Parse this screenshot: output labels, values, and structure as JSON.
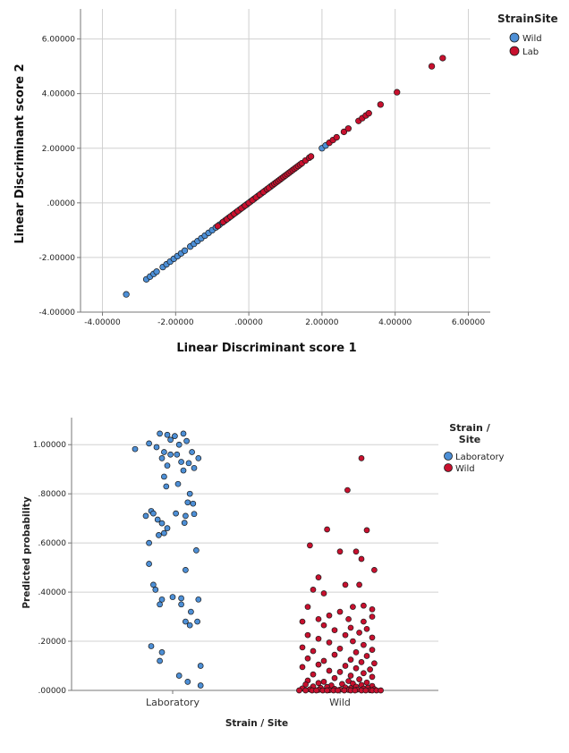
{
  "chart_data": [
    {
      "type": "scatter",
      "title": "",
      "xlabel": "Linear Discriminant score 1",
      "ylabel": "Linear Discriminant score 2",
      "xlim": [
        -4.6,
        6.6
      ],
      "ylim": [
        -4.0,
        7.1
      ],
      "xticks": [
        -4,
        -2,
        0,
        2,
        4,
        6
      ],
      "xtick_labels": [
        "-4.00000",
        "-2.00000",
        ".00000",
        "2.00000",
        "4.00000",
        "6.00000"
      ],
      "yticks": [
        -4,
        -2,
        0,
        2,
        4,
        6
      ],
      "ytick_labels": [
        "-4.00000",
        "-2.00000",
        ".00000",
        "2.00000",
        "4.00000",
        "6.00000"
      ],
      "grid": true,
      "legend": {
        "title": "StrainSite",
        "placement": "right"
      },
      "series": [
        {
          "name": "Wild",
          "color": "#4d8fd6",
          "points": [
            [
              -3.35,
              -3.35
            ],
            [
              -2.8,
              -2.8
            ],
            [
              -2.7,
              -2.7
            ],
            [
              -2.6,
              -2.6
            ],
            [
              -2.52,
              -2.52
            ],
            [
              -2.35,
              -2.35
            ],
            [
              -2.25,
              -2.25
            ],
            [
              -2.15,
              -2.15
            ],
            [
              -2.05,
              -2.05
            ],
            [
              -1.95,
              -1.95
            ],
            [
              -1.85,
              -1.85
            ],
            [
              -1.75,
              -1.75
            ],
            [
              -1.6,
              -1.6
            ],
            [
              -1.5,
              -1.5
            ],
            [
              -1.4,
              -1.4
            ],
            [
              -1.3,
              -1.3
            ],
            [
              -1.2,
              -1.2
            ],
            [
              -1.1,
              -1.1
            ],
            [
              -1.0,
              -1.0
            ],
            [
              -0.9,
              -0.9
            ],
            [
              -0.8,
              -0.8
            ],
            [
              -0.72,
              -0.72
            ],
            [
              -0.65,
              -0.65
            ],
            [
              -0.55,
              -0.55
            ],
            [
              -0.45,
              -0.45
            ],
            [
              -0.35,
              -0.35
            ],
            [
              -0.25,
              -0.25
            ],
            [
              -0.15,
              -0.15
            ],
            [
              -0.05,
              -0.05
            ],
            [
              0.05,
              0.05
            ],
            [
              0.15,
              0.15
            ],
            [
              0.25,
              0.25
            ],
            [
              0.35,
              0.35
            ],
            [
              0.45,
              0.45
            ],
            [
              0.6,
              0.6
            ],
            [
              2.0,
              2.0
            ],
            [
              2.1,
              2.1
            ]
          ]
        },
        {
          "name": "Lab",
          "color": "#c8102e",
          "points": [
            [
              -0.85,
              -0.85
            ],
            [
              -0.7,
              -0.7
            ],
            [
              -0.6,
              -0.6
            ],
            [
              -0.5,
              -0.5
            ],
            [
              -0.4,
              -0.4
            ],
            [
              -0.3,
              -0.3
            ],
            [
              -0.2,
              -0.2
            ],
            [
              -0.1,
              -0.1
            ],
            [
              0.0,
              0.0
            ],
            [
              0.1,
              0.1
            ],
            [
              0.2,
              0.2
            ],
            [
              0.3,
              0.3
            ],
            [
              0.4,
              0.4
            ],
            [
              0.5,
              0.5
            ],
            [
              0.55,
              0.55
            ],
            [
              0.65,
              0.65
            ],
            [
              0.7,
              0.7
            ],
            [
              0.75,
              0.75
            ],
            [
              0.8,
              0.8
            ],
            [
              0.85,
              0.85
            ],
            [
              0.9,
              0.9
            ],
            [
              0.95,
              0.95
            ],
            [
              1.0,
              1.0
            ],
            [
              1.05,
              1.05
            ],
            [
              1.1,
              1.1
            ],
            [
              1.15,
              1.15
            ],
            [
              1.2,
              1.2
            ],
            [
              1.25,
              1.25
            ],
            [
              1.3,
              1.3
            ],
            [
              1.35,
              1.35
            ],
            [
              1.4,
              1.4
            ],
            [
              1.45,
              1.45
            ],
            [
              1.55,
              1.55
            ],
            [
              1.65,
              1.65
            ],
            [
              1.7,
              1.7
            ],
            [
              2.2,
              2.2
            ],
            [
              2.3,
              2.3
            ],
            [
              2.4,
              2.4
            ],
            [
              2.6,
              2.6
            ],
            [
              2.72,
              2.72
            ],
            [
              3.0,
              3.0
            ],
            [
              3.1,
              3.1
            ],
            [
              3.2,
              3.2
            ],
            [
              3.28,
              3.28
            ],
            [
              3.6,
              3.6
            ],
            [
              4.05,
              4.05
            ],
            [
              5.0,
              5.0
            ],
            [
              5.3,
              5.3
            ]
          ]
        }
      ]
    },
    {
      "type": "scatter",
      "title": "",
      "xlabel": "Strain / Site",
      "ylabel": "Predicted probability",
      "categories": [
        "Laboratory",
        "Wild"
      ],
      "ylim": [
        0,
        1.11
      ],
      "yticks": [
        0,
        0.2,
        0.4,
        0.6,
        0.8,
        1.0
      ],
      "ytick_labels": [
        ".00000",
        ".20000",
        ".40000",
        ".60000",
        ".80000",
        "1.00000"
      ],
      "grid": true,
      "legend": {
        "title": "Strain / Site",
        "placement": "right"
      },
      "series": [
        {
          "name": "Laboratory",
          "color": "#4d8fd6",
          "category": "Laboratory",
          "points": [
            [
              -0.35,
              0.982
            ],
            [
              -0.22,
              1.005
            ],
            [
              -0.15,
              0.99
            ],
            [
              -0.12,
              1.045
            ],
            [
              -0.08,
              0.97
            ],
            [
              -0.05,
              1.04
            ],
            [
              -0.02,
              1.02
            ],
            [
              0.02,
              1.035
            ],
            [
              0.06,
              1.0
            ],
            [
              0.1,
              1.045
            ],
            [
              0.13,
              1.015
            ],
            [
              0.18,
              0.97
            ],
            [
              0.24,
              0.945
            ],
            [
              -0.1,
              0.945
            ],
            [
              -0.02,
              0.96
            ],
            [
              0.04,
              0.96
            ],
            [
              0.08,
              0.93
            ],
            [
              0.15,
              0.925
            ],
            [
              -0.05,
              0.915
            ],
            [
              0.2,
              0.905
            ],
            [
              -0.08,
              0.87
            ],
            [
              0.1,
              0.895
            ],
            [
              -0.06,
              0.83
            ],
            [
              0.05,
              0.84
            ],
            [
              0.14,
              0.765
            ],
            [
              0.16,
              0.8
            ],
            [
              0.19,
              0.76
            ],
            [
              0.03,
              0.72
            ],
            [
              0.2,
              0.718
            ],
            [
              -0.2,
              0.73
            ],
            [
              -0.25,
              0.71
            ],
            [
              -0.18,
              0.72
            ],
            [
              -0.14,
              0.695
            ],
            [
              -0.1,
              0.68
            ],
            [
              -0.08,
              0.64
            ],
            [
              -0.05,
              0.66
            ],
            [
              0.12,
              0.71
            ],
            [
              0.11,
              0.682
            ],
            [
              -0.13,
              0.632
            ],
            [
              0.22,
              0.57
            ],
            [
              -0.22,
              0.6
            ],
            [
              -0.22,
              0.515
            ],
            [
              0.12,
              0.49
            ],
            [
              -0.18,
              0.43
            ],
            [
              -0.16,
              0.41
            ],
            [
              -0.1,
              0.37
            ],
            [
              -0.12,
              0.35
            ],
            [
              0.0,
              0.38
            ],
            [
              0.08,
              0.375
            ],
            [
              0.08,
              0.35
            ],
            [
              0.17,
              0.32
            ],
            [
              0.24,
              0.37
            ],
            [
              0.23,
              0.28
            ],
            [
              0.12,
              0.28
            ],
            [
              0.16,
              0.265
            ],
            [
              -0.2,
              0.18
            ],
            [
              -0.1,
              0.155
            ],
            [
              -0.12,
              0.12
            ],
            [
              0.06,
              0.06
            ],
            [
              0.14,
              0.035
            ],
            [
              0.26,
              0.1
            ],
            [
              0.26,
              0.02
            ]
          ]
        },
        {
          "name": "Wild",
          "color": "#c8102e",
          "category": "Wild",
          "points": [
            [
              0.2,
              0.945
            ],
            [
              0.07,
              0.815
            ],
            [
              -0.12,
              0.655
            ],
            [
              0.25,
              0.652
            ],
            [
              -0.28,
              0.59
            ],
            [
              0.15,
              0.565
            ],
            [
              0.0,
              0.565
            ],
            [
              0.2,
              0.535
            ],
            [
              0.32,
              0.49
            ],
            [
              -0.2,
              0.46
            ],
            [
              0.18,
              0.43
            ],
            [
              0.05,
              0.43
            ],
            [
              -0.25,
              0.41
            ],
            [
              -0.15,
              0.395
            ],
            [
              0.22,
              0.345
            ],
            [
              0.3,
              0.33
            ],
            [
              -0.3,
              0.34
            ],
            [
              0.12,
              0.34
            ],
            [
              0.0,
              0.32
            ],
            [
              -0.1,
              0.305
            ],
            [
              0.3,
              0.3
            ],
            [
              -0.2,
              0.29
            ],
            [
              0.08,
              0.29
            ],
            [
              -0.35,
              0.28
            ],
            [
              0.22,
              0.28
            ],
            [
              -0.15,
              0.265
            ],
            [
              0.1,
              0.255
            ],
            [
              0.25,
              0.25
            ],
            [
              -0.05,
              0.245
            ],
            [
              0.18,
              0.235
            ],
            [
              -0.3,
              0.225
            ],
            [
              0.05,
              0.225
            ],
            [
              0.3,
              0.215
            ],
            [
              -0.2,
              0.21
            ],
            [
              0.12,
              0.2
            ],
            [
              -0.1,
              0.195
            ],
            [
              0.22,
              0.185
            ],
            [
              -0.35,
              0.175
            ],
            [
              0.0,
              0.17
            ],
            [
              0.3,
              0.165
            ],
            [
              -0.25,
              0.16
            ],
            [
              0.15,
              0.155
            ],
            [
              -0.05,
              0.145
            ],
            [
              0.25,
              0.14
            ],
            [
              -0.3,
              0.13
            ],
            [
              0.1,
              0.125
            ],
            [
              -0.15,
              0.12
            ],
            [
              0.2,
              0.115
            ],
            [
              0.32,
              0.11
            ],
            [
              -0.2,
              0.105
            ],
            [
              0.05,
              0.1
            ],
            [
              -0.35,
              0.095
            ],
            [
              0.15,
              0.09
            ],
            [
              0.28,
              0.085
            ],
            [
              -0.1,
              0.08
            ],
            [
              0.0,
              0.075
            ],
            [
              0.22,
              0.07
            ],
            [
              -0.25,
              0.065
            ],
            [
              0.1,
              0.06
            ],
            [
              0.3,
              0.055
            ],
            [
              -0.05,
              0.05
            ],
            [
              0.18,
              0.045
            ],
            [
              -0.3,
              0.04
            ],
            [
              0.08,
              0.038
            ],
            [
              -0.15,
              0.035
            ],
            [
              0.25,
              0.032
            ],
            [
              -0.2,
              0.03
            ],
            [
              0.12,
              0.028
            ],
            [
              0.02,
              0.026
            ],
            [
              -0.32,
              0.024
            ],
            [
              0.2,
              0.022
            ],
            [
              -0.08,
              0.02
            ],
            [
              0.3,
              0.018
            ],
            [
              -0.25,
              0.016
            ],
            [
              0.15,
              0.015
            ],
            [
              -0.12,
              0.014
            ],
            [
              0.05,
              0.012
            ],
            [
              0.26,
              0.011
            ],
            [
              -0.18,
              0.01
            ],
            [
              0.1,
              0.009
            ],
            [
              -0.35,
              0.008
            ],
            [
              0.22,
              0.007
            ],
            [
              -0.05,
              0.006
            ],
            [
              0.32,
              0.005
            ],
            [
              -0.28,
              0.004
            ],
            [
              0.0,
              0.003
            ],
            [
              0.16,
              0.003
            ],
            [
              -0.2,
              0.002
            ],
            [
              0.08,
              0.002
            ],
            [
              0.28,
              0.001
            ],
            [
              -0.1,
              0.001
            ],
            [
              -0.38,
              0.0
            ],
            [
              -0.32,
              0.0
            ],
            [
              -0.26,
              0.0
            ],
            [
              -0.22,
              0.0
            ],
            [
              -0.16,
              0.0
            ],
            [
              -0.12,
              0.0
            ],
            [
              -0.06,
              0.0
            ],
            [
              -0.02,
              0.0
            ],
            [
              0.04,
              0.0
            ],
            [
              0.1,
              0.0
            ],
            [
              0.14,
              0.0
            ],
            [
              0.2,
              0.0
            ],
            [
              0.24,
              0.0
            ],
            [
              0.3,
              0.0
            ],
            [
              0.34,
              0.0
            ],
            [
              0.38,
              0.0
            ]
          ]
        }
      ]
    }
  ]
}
